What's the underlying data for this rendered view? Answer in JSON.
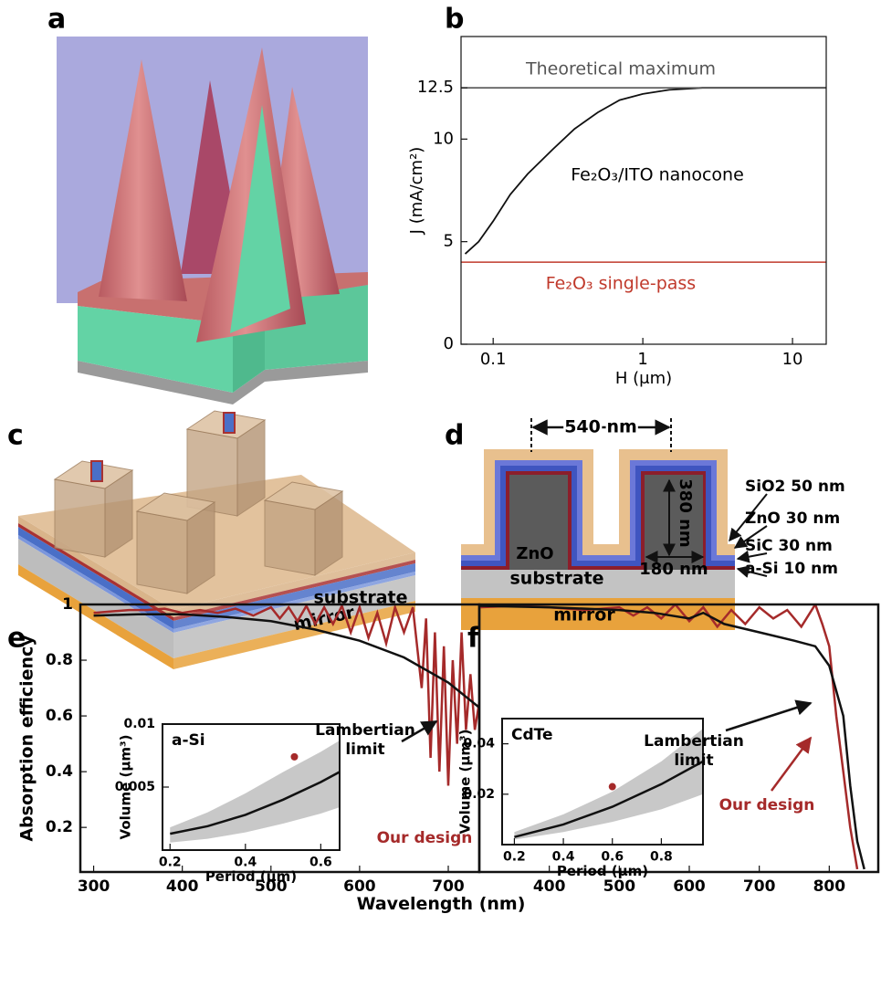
{
  "panel_labels": [
    "a",
    "b",
    "c",
    "d",
    "e",
    "f"
  ],
  "diagram_c": {
    "labels": [
      "substrate",
      "mirror"
    ]
  },
  "diagram_d": {
    "dimensions": [
      "540 nm",
      "380 nm",
      "180 nm"
    ],
    "core_label": "ZnO",
    "substrate": "substrate",
    "mirror": "mirror",
    "layers": [
      "SiO2 50 nm",
      "ZnO 30 nm",
      "SiC  30 nm",
      "a-Si 10 nm"
    ]
  },
  "chart_data": [
    {
      "type": "line",
      "log_x": true,
      "xlabel": "H (μm)",
      "ylabel": "J (mA/cm²)",
      "xlim": [
        0.061,
        16.8
      ],
      "xticks": [
        0.1,
        1,
        10
      ],
      "ylim": [
        0,
        15
      ],
      "yticks": [
        0,
        5,
        10,
        12.5
      ],
      "series": [
        {
          "color": "#111111",
          "x": [
            0.065,
            0.08,
            0.1,
            0.13,
            0.17,
            0.25,
            0.35,
            0.5,
            0.7,
            1,
            1.5,
            2.5,
            5,
            16.8
          ],
          "values": [
            4.4,
            5.0,
            6.0,
            7.3,
            8.3,
            9.5,
            10.5,
            11.3,
            11.9,
            12.2,
            12.4,
            12.5,
            12.5,
            12.5
          ]
        }
      ],
      "annotation": "Fe₂O₃/ITO nanocone",
      "hlines": [
        {
          "value": 12.5,
          "label": "Theoretical maximum",
          "color": "#555555"
        },
        {
          "value": 4,
          "label": "Fe₂O₃ single-pass",
          "color": "#c0392b"
        }
      ]
    },
    {
      "type": "line",
      "xlabel": "Wavelength (nm)",
      "ylabel": "Absorption efficiency",
      "xlim": [
        285,
        735
      ],
      "xticks": [
        300,
        400,
        500,
        600,
        700
      ],
      "ylim": [
        0.04,
        1.0
      ],
      "yticks": [
        0.2,
        0.4,
        0.6,
        0.8,
        1
      ],
      "series": [
        {
          "color": "#a52a2a",
          "x": [
            300,
            320,
            340,
            360,
            380,
            400,
            420,
            440,
            460,
            480,
            500,
            510,
            520,
            530,
            540,
            550,
            560,
            570,
            580,
            590,
            600,
            610,
            620,
            630,
            640,
            650,
            660,
            670,
            675,
            680,
            685,
            690,
            695,
            700,
            705,
            710,
            715,
            720,
            725,
            730,
            735
          ],
          "values": [
            0.97,
            0.975,
            0.98,
            0.98,
            0.985,
            0.97,
            0.98,
            0.97,
            0.985,
            0.96,
            0.99,
            0.95,
            0.99,
            0.94,
            0.995,
            0.93,
            0.99,
            0.93,
            0.995,
            0.9,
            0.99,
            0.88,
            0.97,
            0.86,
            0.99,
            0.9,
            0.99,
            0.7,
            0.95,
            0.45,
            0.9,
            0.4,
            0.85,
            0.35,
            0.8,
            0.5,
            0.9,
            0.55,
            0.75,
            0.55,
            0.65
          ]
        },
        {
          "color": "#111111",
          "x": [
            300,
            350,
            400,
            450,
            500,
            550,
            600,
            650,
            700,
            735
          ],
          "values": [
            0.96,
            0.965,
            0.965,
            0.955,
            0.94,
            0.91,
            0.87,
            0.81,
            0.72,
            0.63
          ]
        }
      ],
      "lambertian_label": [
        "Lambertian",
        "limit"
      ],
      "design_label": "Our design",
      "inset": {
        "type": "line",
        "title": "a-Si",
        "xlabel": "Period (μm)",
        "ylabel": "Volume (μm³)",
        "xlim": [
          0.18,
          0.65
        ],
        "xticks": [
          0.2,
          0.4,
          0.6
        ],
        "ylim": [
          0,
          0.01
        ],
        "yticks": [
          0.005,
          0.01
        ],
        "color": "#111111",
        "x": [
          0.2,
          0.3,
          0.4,
          0.5,
          0.6,
          0.65
        ],
        "values": [
          0.0013,
          0.0019,
          0.0028,
          0.004,
          0.0054,
          0.0062
        ],
        "band_lower": [
          0.0006,
          0.0009,
          0.0014,
          0.0021,
          0.0029,
          0.0034
        ],
        "band_upper": [
          0.0018,
          0.003,
          0.0045,
          0.0062,
          0.0078,
          0.0087
        ],
        "point": {
          "x": 0.53,
          "y": 0.0074,
          "color": "#a52a2a"
        }
      }
    },
    {
      "type": "line",
      "xlim": [
        300,
        870
      ],
      "xticks": [
        400,
        500,
        600,
        700,
        800
      ],
      "ylim": [
        0.04,
        1.0
      ],
      "series": [
        {
          "color": "#a52a2a",
          "x": [
            300,
            350,
            400,
            450,
            500,
            520,
            540,
            560,
            580,
            600,
            620,
            640,
            660,
            680,
            700,
            720,
            740,
            760,
            780,
            790,
            800,
            810,
            820,
            830,
            840
          ],
          "values": [
            0.99,
            0.995,
            0.99,
            0.98,
            0.99,
            0.96,
            0.99,
            0.95,
            1.0,
            0.94,
            0.99,
            0.92,
            0.98,
            0.93,
            0.99,
            0.95,
            0.98,
            0.92,
            1.0,
            0.93,
            0.85,
            0.6,
            0.4,
            0.2,
            0.05
          ]
        },
        {
          "color": "#111111",
          "x": [
            300,
            400,
            500,
            550,
            600,
            620,
            650,
            700,
            750,
            780,
            800,
            820,
            830,
            840,
            850
          ],
          "values": [
            0.995,
            0.99,
            0.98,
            0.97,
            0.95,
            0.97,
            0.93,
            0.9,
            0.87,
            0.85,
            0.78,
            0.6,
            0.35,
            0.15,
            0.05
          ]
        }
      ],
      "lambertian_label": [
        "Lambertian",
        "limit"
      ],
      "design_label": "Our design",
      "inset": {
        "type": "line",
        "title": "CdTe",
        "xlabel": "Period (μm)",
        "ylabel": "Volume (μm³)",
        "xlim": [
          0.15,
          0.97
        ],
        "xticks": [
          0.2,
          0.4,
          0.6,
          0.8
        ],
        "ylim": [
          0,
          0.05
        ],
        "yticks": [
          0.02,
          0.04
        ],
        "color": "#111111",
        "x": [
          0.2,
          0.4,
          0.6,
          0.8,
          0.97
        ],
        "values": [
          0.003,
          0.008,
          0.015,
          0.024,
          0.033
        ],
        "band_lower": [
          0.002,
          0.005,
          0.009,
          0.014,
          0.02
        ],
        "band_upper": [
          0.005,
          0.012,
          0.021,
          0.033,
          0.046
        ],
        "point": {
          "x": 0.6,
          "y": 0.023,
          "color": "#a52a2a"
        }
      }
    }
  ]
}
